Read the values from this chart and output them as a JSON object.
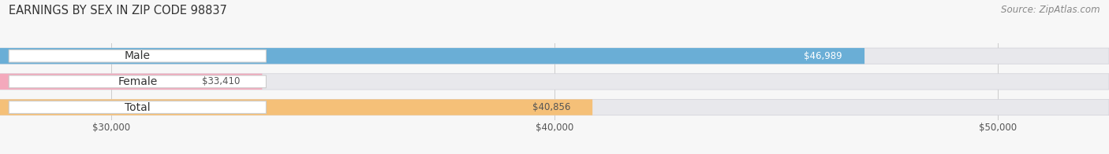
{
  "title": "EARNINGS BY SEX IN ZIP CODE 98837",
  "source": "Source: ZipAtlas.com",
  "categories": [
    "Male",
    "Female",
    "Total"
  ],
  "values": [
    46989,
    33410,
    40856
  ],
  "bar_colors": [
    "#6aaed6",
    "#f4a9bc",
    "#f5c078"
  ],
  "bar_bg_color": "#e8e8ec",
  "value_text_colors": [
    "#ffffff",
    "#555555",
    "#555555"
  ],
  "xmin": 27500,
  "xmax": 52500,
  "xticks": [
    30000,
    40000,
    50000
  ],
  "xtick_labels": [
    "$30,000",
    "$40,000",
    "$50,000"
  ],
  "title_fontsize": 10.5,
  "source_fontsize": 8.5,
  "label_fontsize": 10,
  "value_fontsize": 8.5,
  "background_color": "#f7f7f7"
}
